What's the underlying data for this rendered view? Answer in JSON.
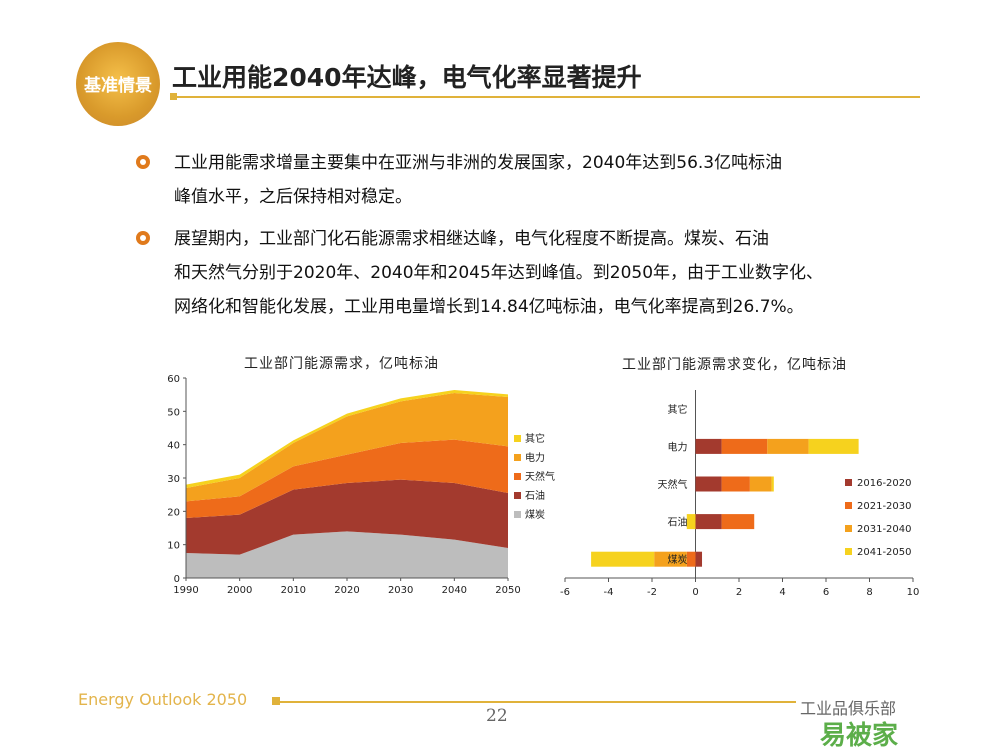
{
  "logo": {
    "text": "基准情景"
  },
  "title": "工业用能2040年达峰，电气化率显著提升",
  "bullets": [
    {
      "lines": [
        "工业用能需求增量主要集中在亚洲与非洲的发展国家，2040年达到56.3亿吨标油",
        "峰值水平，之后保持相对稳定。"
      ]
    },
    {
      "lines": [
        "展望期内，工业部门化石能源需求相继达峰，电气化程度不断提高。煤炭、石油",
        "和天然气分别于2020年、2040年和2045年达到峰值。到2050年，由于工业数字化、",
        "网络化和智能化发展，工业用电量增长到14.84亿吨标油，电气化率提高到26.7%。"
      ]
    }
  ],
  "footer": {
    "brand": "Energy Outlook 2050",
    "page": "22",
    "watermark": "工业品俱乐部",
    "watermark2": "易被家"
  },
  "colors": {
    "coal": "#bdbdbd",
    "oil": "#a33a2e",
    "gas": "#ee6b1a",
    "power": "#f4a11d",
    "other": "#f6d21e"
  },
  "chart_data": [
    {
      "type": "area",
      "title": "工业部门能源需求，亿吨标油",
      "x": [
        1990,
        2000,
        2010,
        2020,
        2030,
        2040,
        2050
      ],
      "xlim": [
        1990,
        2050
      ],
      "ylim": [
        0,
        60
      ],
      "yticks": [
        0,
        10,
        20,
        30,
        40,
        50,
        60
      ],
      "legend_position": "right",
      "series": [
        {
          "name": "煤炭",
          "color": "#bdbdbd",
          "values": [
            7.5,
            7,
            13,
            14,
            13,
            11.5,
            9
          ]
        },
        {
          "name": "石油",
          "color": "#a33a2e",
          "values": [
            10.5,
            12,
            13.5,
            14.5,
            16.5,
            17,
            16.5
          ]
        },
        {
          "name": "天然气",
          "color": "#ee6b1a",
          "values": [
            5,
            5.5,
            7,
            8.5,
            11,
            13,
            14
          ]
        },
        {
          "name": "电力",
          "color": "#f4a11d",
          "values": [
            4,
            5.5,
            7,
            11.5,
            12.5,
            14,
            14.8
          ]
        },
        {
          "name": "其它",
          "color": "#f6d21e",
          "values": [
            1,
            1,
            0.8,
            0.8,
            0.9,
            0.9,
            0.8
          ]
        }
      ]
    },
    {
      "type": "bar",
      "orientation": "horizontal-stacked",
      "title": "工业部门能源需求变化，亿吨标油",
      "categories": [
        "其它",
        "电力",
        "天然气",
        "石油",
        "煤炭"
      ],
      "xlim": [
        -6,
        10
      ],
      "xticks": [
        -6,
        -4,
        -2,
        0,
        2,
        4,
        6,
        8,
        10
      ],
      "legend_position": "right",
      "series": [
        {
          "name": "2016-2020",
          "color": "#a33a2e",
          "values": [
            0,
            1.2,
            1.2,
            1.2,
            0.3
          ]
        },
        {
          "name": "2021-2030",
          "color": "#ee6b1a",
          "values": [
            0,
            2.1,
            1.3,
            1.5,
            -0.4
          ]
        },
        {
          "name": "2031-2040",
          "color": "#f4a11d",
          "values": [
            0,
            1.9,
            1.0,
            0,
            -1.5
          ]
        },
        {
          "name": "2041-2050",
          "color": "#f6d21e",
          "values": [
            0,
            2.3,
            0.1,
            -0.4,
            -2.9
          ]
        }
      ]
    }
  ]
}
